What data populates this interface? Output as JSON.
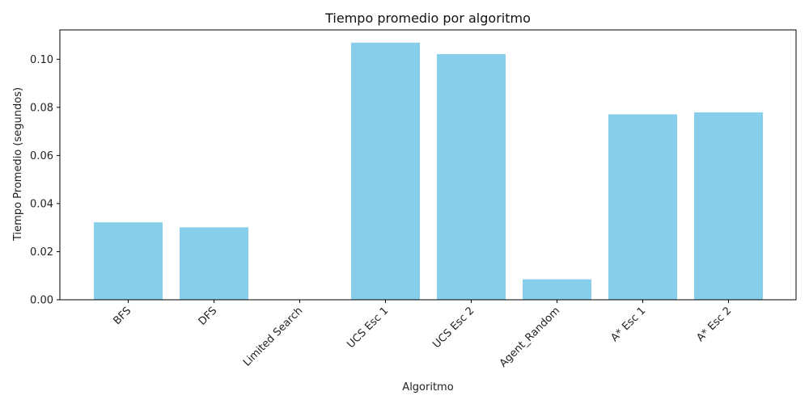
{
  "chart_data": {
    "type": "bar",
    "title": "Tiempo promedio por algoritmo",
    "xlabel": "Algoritmo",
    "ylabel": "Tiempo Promedio (segundos)",
    "categories": [
      "BFS",
      "DFS",
      "Limited Search",
      "UCS Esc 1",
      "UCS Esc 2",
      "Agent_Random",
      "A* Esc 1",
      "A* Esc 2"
    ],
    "values": [
      0.0322,
      0.0301,
      0.0,
      0.1069,
      0.1021,
      0.0085,
      0.0771,
      0.0779
    ],
    "yticks": [
      0.0,
      0.02,
      0.04,
      0.06,
      0.08,
      0.1
    ],
    "ytick_labels": [
      "0.00",
      "0.02",
      "0.04",
      "0.06",
      "0.08",
      "0.10"
    ],
    "ylim": [
      0,
      0.1122
    ],
    "grid": false,
    "bar_color": "#87CEEB",
    "x_tick_rotation_deg": 45
  }
}
